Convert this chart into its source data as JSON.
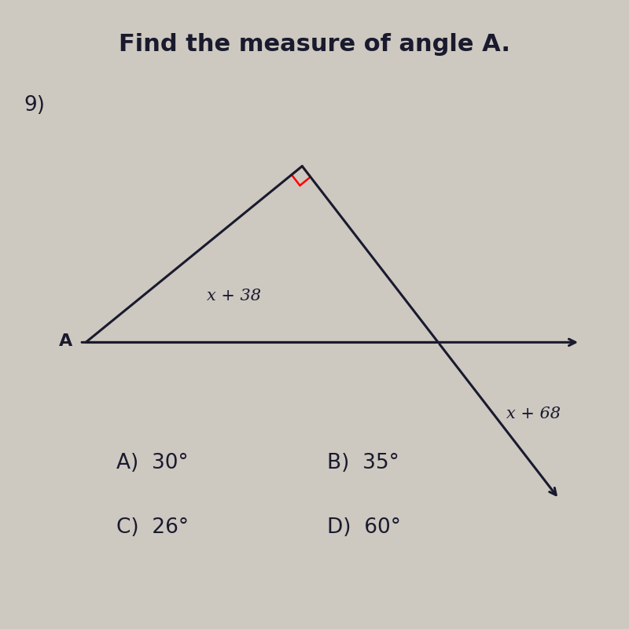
{
  "title": "Find the measure of angle A.",
  "problem_number": "9)",
  "background_color": "#cdc8c0",
  "angle_A_label": "x + 38",
  "angle_ext_label": "x + 68",
  "point_A_label": "A",
  "answers": [
    "A)  30°",
    "B)  35°",
    "C)  26°",
    "D)  60°"
  ],
  "title_fontsize": 22,
  "label_fontsize": 15,
  "answer_fontsize": 19,
  "line_color": "#1a1a2e"
}
